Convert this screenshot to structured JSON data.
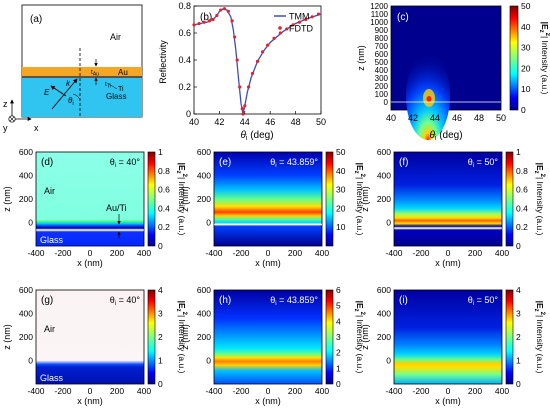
{
  "panel_a": {
    "label": "(a)",
    "air": "Air",
    "glass": "Glass",
    "au": "Au",
    "ti": "Ti",
    "t_au": "t",
    "t_au_sub": "Au",
    "t_ti": "t",
    "t_ti_sub": "Ti",
    "e_field": "E",
    "k_vec": "k",
    "theta": "θ",
    "theta_sub": "i",
    "axis_z": "z",
    "axis_x": "x",
    "axis_y": "y"
  },
  "panel_b": {
    "label": "(b)",
    "ylabel": "Reflectivity",
    "xlabel_main": "θ",
    "xlabel_sub": "i",
    "xlabel_unit": " (deg)",
    "legend": [
      "TMM",
      "FDTD"
    ]
  },
  "panel_c": {
    "label": "(c)",
    "ylabel": "z (nm)",
    "xlabel_main": "θ",
    "xlabel_sub": "i",
    "xlabel_unit": " (deg)"
  },
  "cbar_label_main": "|E",
  "cbar_label_sub": "z",
  "cbar_label_sup": "2",
  "cbar_label_tail": "| Intensity (a.u.)",
  "maps_xlabel": "x (nm)",
  "maps_ylabel": "z (nm)",
  "maps": [
    {
      "label": "(d)",
      "theta_main": "θ",
      "theta_sub": "i",
      "theta_val": " = 40°",
      "extra_air": "Air",
      "extra_glass": "Glass",
      "extra_auti": "Au/Ti"
    },
    {
      "label": "(e)",
      "theta_main": "θ",
      "theta_sub": "i",
      "theta_val": " = 43.859°"
    },
    {
      "label": "(f)",
      "theta_main": "θ",
      "theta_sub": "i",
      "theta_val": " = 50°"
    },
    {
      "label": "(g)",
      "theta_main": "θ",
      "theta_sub": "i",
      "theta_val": " = 40°",
      "extra_air": "Air",
      "extra_glass": "Glass"
    },
    {
      "label": "(h)",
      "theta_main": "θ",
      "theta_sub": "i",
      "theta_val": " = 43.859°"
    },
    {
      "label": "(i)",
      "theta_main": "θ",
      "theta_sub": "i",
      "theta_val": " = 50°"
    }
  ],
  "colors": {
    "tmm": "#3b4cc0",
    "fdtd": "#e8202a",
    "air": "#ffffff",
    "glass": "#2fc5f0",
    "au": "#f5a623"
  },
  "chart_data": [
    {
      "type": "line",
      "panel": "(b)",
      "xlim": [
        40,
        50
      ],
      "ylim": [
        0,
        0.8
      ],
      "xticks": [
        40,
        42,
        44,
        46,
        48,
        50
      ],
      "yticks": [
        0,
        0.2,
        0.4,
        0.6,
        0.8
      ],
      "series": [
        {
          "name": "TMM",
          "x": [
            40,
            40.5,
            41,
            41.3,
            41.6,
            41.8,
            42,
            42.3,
            42.6,
            42.9,
            43.1,
            43.3,
            43.5,
            43.7,
            43.86,
            44,
            44.2,
            44.5,
            45,
            45.5,
            46,
            47,
            48,
            49,
            50
          ],
          "values": [
            0.66,
            0.67,
            0.68,
            0.69,
            0.71,
            0.73,
            0.76,
            0.78,
            0.77,
            0.72,
            0.62,
            0.47,
            0.27,
            0.08,
            0.0,
            0.06,
            0.16,
            0.27,
            0.39,
            0.47,
            0.53,
            0.61,
            0.67,
            0.71,
            0.74
          ]
        },
        {
          "name": "FDTD",
          "x": [
            40.0,
            40.4,
            40.8,
            41.2,
            41.5,
            41.8,
            42.1,
            42.4,
            42.7,
            43.0,
            43.2,
            43.4,
            43.6,
            43.8,
            43.86,
            44.0,
            44.3,
            44.6,
            45.0,
            45.4,
            45.8,
            46.3,
            46.8,
            47.3,
            47.8,
            48.3,
            48.8,
            49.3,
            49.8
          ],
          "values": [
            0.66,
            0.67,
            0.68,
            0.69,
            0.7,
            0.73,
            0.77,
            0.78,
            0.76,
            0.69,
            0.57,
            0.4,
            0.2,
            0.04,
            0.0,
            0.06,
            0.2,
            0.3,
            0.39,
            0.46,
            0.51,
            0.56,
            0.6,
            0.63,
            0.66,
            0.68,
            0.7,
            0.72,
            0.74
          ]
        }
      ]
    },
    {
      "type": "heatmap",
      "panel": "(c)",
      "xlim": [
        40,
        50
      ],
      "ylim": [
        -100,
        1200
      ],
      "xticks": [
        40,
        42,
        44,
        46,
        48,
        50
      ],
      "yticks": [
        0,
        100,
        200,
        300,
        400,
        500,
        600,
        700,
        800,
        900,
        1000,
        1100,
        1200
      ],
      "clim": [
        0,
        50
      ],
      "cticks": [
        0,
        10,
        20,
        30,
        40,
        50
      ]
    },
    {
      "type": "heatmap",
      "panel": "(d)",
      "xlim": [
        -400,
        400
      ],
      "ylim": [
        -200,
        600
      ],
      "xticks": [
        -400,
        -200,
        0,
        200,
        400
      ],
      "yticks": [
        0,
        200,
        400,
        600
      ],
      "clim": [
        0,
        1
      ],
      "cticks": [
        0,
        0.2,
        0.4,
        0.6,
        0.8,
        1.0
      ]
    },
    {
      "type": "heatmap",
      "panel": "(e)",
      "xlim": [
        -400,
        400
      ],
      "ylim": [
        -200,
        600
      ],
      "xticks": [
        -400,
        -200,
        0,
        200,
        400
      ],
      "yticks": [
        0,
        200,
        400,
        600
      ],
      "clim": [
        0,
        50
      ],
      "cticks": [
        10,
        20,
        30,
        40,
        50
      ]
    },
    {
      "type": "heatmap",
      "panel": "(f)",
      "xlim": [
        -400,
        400
      ],
      "ylim": [
        -200,
        600
      ],
      "xticks": [
        -400,
        -200,
        0,
        200,
        400
      ],
      "yticks": [
        0,
        200,
        400,
        600
      ],
      "clim": [
        0,
        1
      ],
      "cticks": [
        0,
        0.2,
        0.4,
        0.6,
        0.8,
        1.0
      ]
    },
    {
      "type": "heatmap",
      "panel": "(g)",
      "xlim": [
        -400,
        400
      ],
      "ylim": [
        -200,
        600
      ],
      "xticks": [
        -400,
        -200,
        0,
        200,
        400
      ],
      "yticks": [
        0,
        200,
        400,
        600
      ],
      "clim": [
        0,
        4
      ],
      "cticks": [
        0,
        1,
        2,
        3,
        4
      ]
    },
    {
      "type": "heatmap",
      "panel": "(h)",
      "xlim": [
        -400,
        400
      ],
      "ylim": [
        -200,
        600
      ],
      "xticks": [
        -400,
        -200,
        0,
        200,
        400
      ],
      "yticks": [
        0,
        200,
        400,
        600
      ],
      "clim": [
        0,
        6
      ],
      "cticks": [
        0,
        1,
        2,
        3,
        4,
        5,
        6
      ]
    },
    {
      "type": "heatmap",
      "panel": "(i)",
      "xlim": [
        -400,
        400
      ],
      "ylim": [
        -200,
        600
      ],
      "xticks": [
        -400,
        -200,
        0,
        200,
        400
      ],
      "yticks": [
        0,
        200,
        400,
        600
      ],
      "clim": [
        0,
        4
      ],
      "cticks": [
        0,
        1,
        2,
        3,
        4
      ]
    }
  ]
}
